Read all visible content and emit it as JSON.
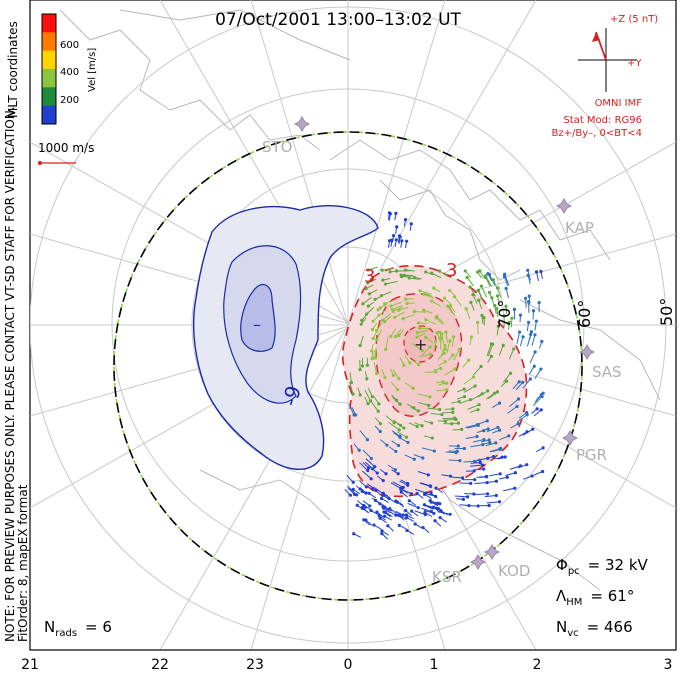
{
  "chart_data": {
    "type": "polar-convection-map",
    "title": "07/Oct/2001 13:00–13:02 UT",
    "coordinates_label": "MLT coordinates",
    "colorbar": {
      "label": "Vel [m/s]",
      "ticks": [
        "600",
        "400",
        "200"
      ],
      "colors": [
        "#ff1010",
        "#ff7a00",
        "#ffd400",
        "#8cc63f",
        "#1e8a3a",
        "#2040d0"
      ]
    },
    "velocity_scale": "1000 m/s",
    "imf": {
      "plus_z": "+Z (5 nT)",
      "plus_y": "+Y",
      "source": "OMNI IMF",
      "stat_mod": "Stat Mod: RG96",
      "condition": "Bz+/By–, 0<BT<4"
    },
    "mlt_ticks": [
      "21",
      "22",
      "23",
      "0",
      "1",
      "2",
      "3"
    ],
    "lat_labels": [
      "70°",
      "60°",
      "50°"
    ],
    "stations": [
      "STO",
      "KAP",
      "SAS",
      "PGR",
      "KOD",
      "KSR"
    ],
    "contours": {
      "dusk_labels": [
        "–",
        "-9"
      ],
      "dawn_labels": [
        "3",
        "3",
        "+"
      ]
    },
    "stats": {
      "phi_pc_label": "Φ",
      "phi_pc_sub": "pc",
      "phi_pc_value": "= 32 kV",
      "lambda_hm_label": "Λ",
      "lambda_hm_sub": "HM",
      "lambda_hm_value": "= 61°",
      "n_vc_label": "N",
      "n_vc_sub": "vc",
      "n_vc_value": "= 466",
      "n_rads_label": "N",
      "n_rads_sub": "rads",
      "n_rads_value": "= 6"
    },
    "notes": {
      "line1": "NOTE: FOR PREVIEW PURPOSES ONLY. PLEASE CONTACT VT-SD STAFF FOR VERIFICATION.",
      "line2": "FitOrder: 8, mapEX format"
    },
    "colors": {
      "dusk_cell": "#e6e8f4",
      "dusk_core": "#b7bde6",
      "dusk_line": "#1a2aa8",
      "dawn_cell": "#f7dcdc",
      "dawn_core": "#f0b9b9",
      "dawn_line": "#d82020",
      "grid": "#c8c8c8",
      "land": "#b5b5b5",
      "hm_boundary": "#000000",
      "hm_dash": "#9ad14b"
    }
  }
}
